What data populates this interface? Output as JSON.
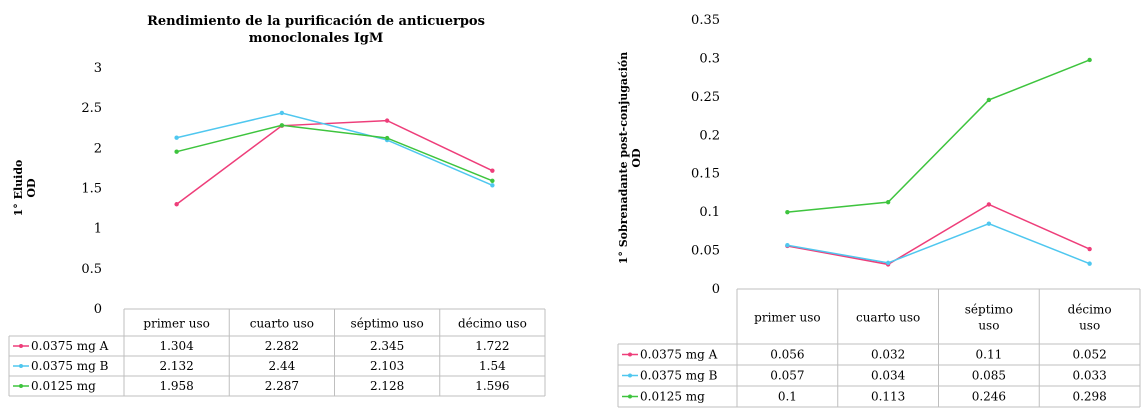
{
  "chart_data": [
    {
      "type": "line",
      "title_lines": [
        "Rendimiento de la purificación de anticuerpos",
        "monoclonales IgM"
      ],
      "ylabel_lines": [
        "1° Eluido",
        "OD"
      ],
      "xlabel": "",
      "categories": [
        "primer uso",
        "cuarto uso",
        "séptimo uso",
        "décimo uso"
      ],
      "ylim": [
        0,
        3
      ],
      "yticks": [
        "0",
        "0.5",
        "1",
        "1.5",
        "2",
        "2.5",
        "3"
      ],
      "grid": false,
      "legend": "data-table",
      "series": [
        {
          "name": "0.0375 mg A",
          "color": "#ee3e7a",
          "values": [
            1.304,
            2.282,
            2.345,
            1.722
          ],
          "labels": [
            "1.304",
            "2.282",
            "2.345",
            "1.722"
          ]
        },
        {
          "name": "0.0375 mg B",
          "color": "#4fc7ef",
          "values": [
            2.132,
            2.44,
            2.103,
            1.54
          ],
          "labels": [
            "2.132",
            "2.44",
            "2.103",
            "1.54"
          ]
        },
        {
          "name": "0.0125 mg",
          "color": "#3ec43e",
          "values": [
            1.958,
            2.287,
            2.128,
            1.596
          ],
          "labels": [
            "1.958",
            "2.287",
            "2.128",
            "1.596"
          ]
        }
      ]
    },
    {
      "type": "line",
      "title_lines": [],
      "ylabel_lines": [
        "1° Sobrenadante post-conjugación",
        "OD"
      ],
      "xlabel": "",
      "categories": [
        "primer uso",
        "cuarto uso",
        "séptimo uso",
        "décimo uso"
      ],
      "category_lines": [
        [
          "primer uso"
        ],
        [
          "cuarto uso"
        ],
        [
          "séptimo",
          "uso"
        ],
        [
          "décimo",
          "uso"
        ]
      ],
      "ylim": [
        0,
        0.35
      ],
      "yticks": [
        "0",
        "0.05",
        "0.1",
        "0.15",
        "0.2",
        "0.25",
        "0.3",
        "0.35"
      ],
      "grid": false,
      "legend": "data-table",
      "series": [
        {
          "name": "0.0375 mg A",
          "color": "#ee3e7a",
          "values": [
            0.056,
            0.032,
            0.11,
            0.052
          ],
          "labels": [
            "0.056",
            "0.032",
            "0.11",
            "0.052"
          ]
        },
        {
          "name": "0.0375 mg B",
          "color": "#4fc7ef",
          "values": [
            0.057,
            0.034,
            0.085,
            0.033
          ],
          "labels": [
            "0.057",
            "0.034",
            "0.085",
            "0.033"
          ]
        },
        {
          "name": "0.0125 mg",
          "color": "#3ec43e",
          "values": [
            0.1,
            0.113,
            0.246,
            0.298
          ],
          "labels": [
            "0.1",
            "0.113",
            "0.246",
            "0.298"
          ]
        }
      ]
    }
  ]
}
